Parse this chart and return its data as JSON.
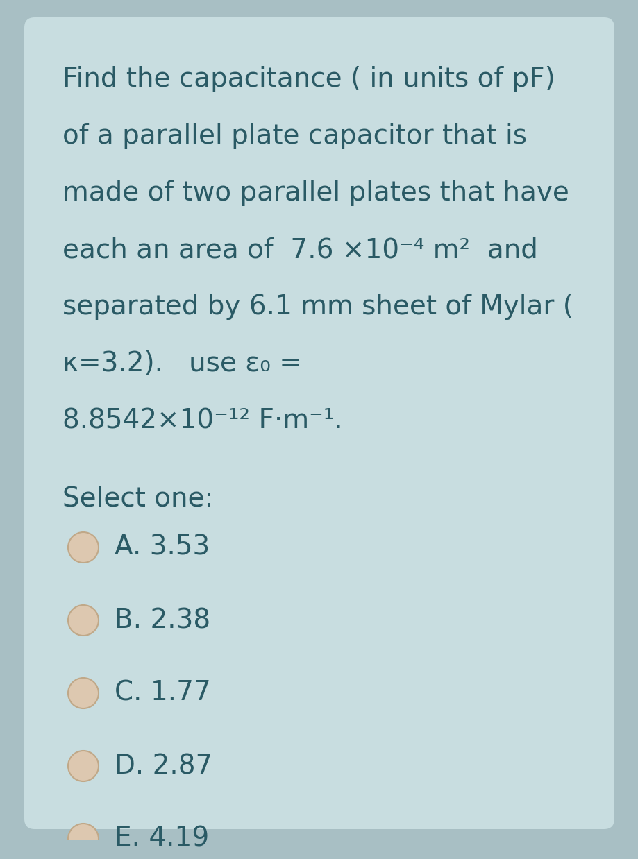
{
  "bg_color": "#a8bfc4",
  "card_color": "#c8dde0",
  "text_color": "#2a5a65",
  "question_lines": [
    "Find the capacitance ( in units of pF)",
    "of a parallel plate capacitor that is",
    "made of two parallel plates that have",
    "each an area of  7.6 ×10⁻⁴ m²  and",
    "separated by 6.1 mm sheet of Mylar (",
    "κ=3.2).   use ε₀ =",
    "8.8542×10⁻¹² F·m⁻¹."
  ],
  "select_label": "Select one:",
  "options": [
    "A. 3.53",
    "B. 2.38",
    "C. 1.77",
    "D. 2.87",
    "E. 4.19"
  ],
  "font_size_question": 28,
  "font_size_options": 28,
  "font_size_select": 28,
  "radio_fill": "#ddc8b0",
  "radio_edge": "#c0a888"
}
